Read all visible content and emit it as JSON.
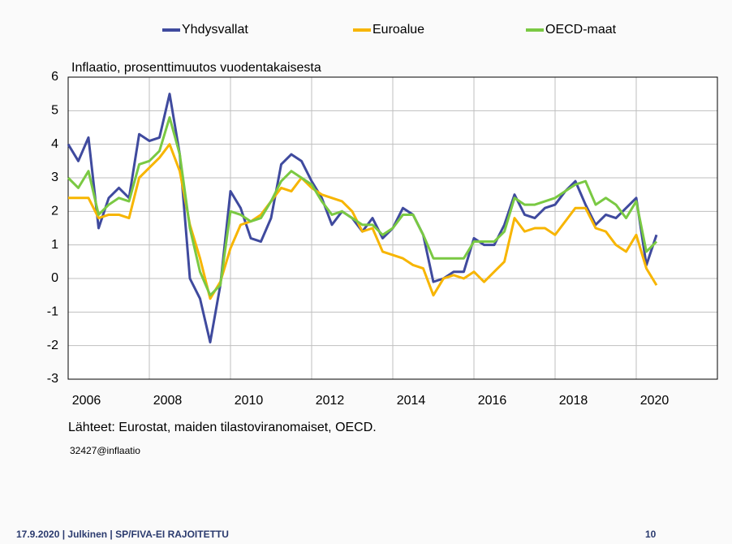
{
  "chart_data": {
    "type": "line",
    "subtitle": "Inflaatio, prosenttimuutos vuodentakaisesta",
    "source": "Lähteet: Eurostat, maiden tilastoviranomaiset, OECD.",
    "note": "32427@inflaatio",
    "x": [
      2006,
      2006.25,
      2006.5,
      2006.75,
      2007,
      2007.25,
      2007.5,
      2007.75,
      2008,
      2008.25,
      2008.5,
      2008.75,
      2009,
      2009.25,
      2009.5,
      2009.75,
      2010,
      2010.25,
      2010.5,
      2010.75,
      2011,
      2011.25,
      2011.5,
      2011.75,
      2012,
      2012.25,
      2012.5,
      2012.75,
      2013,
      2013.25,
      2013.5,
      2013.75,
      2014,
      2014.25,
      2014.5,
      2014.75,
      2015,
      2015.25,
      2015.5,
      2015.75,
      2016,
      2016.25,
      2016.5,
      2016.75,
      2017,
      2017.25,
      2017.5,
      2017.75,
      2018,
      2018.25,
      2018.5,
      2018.75,
      2019,
      2019.25,
      2019.5,
      2019.75,
      2020,
      2020.25,
      2020.5
    ],
    "series": [
      {
        "name": "Yhdysvallat",
        "color": "#3f4a9e",
        "values": [
          4.0,
          3.5,
          4.2,
          1.5,
          2.4,
          2.7,
          2.4,
          4.3,
          4.1,
          4.2,
          5.5,
          3.7,
          0.0,
          -0.6,
          -1.9,
          -0.2,
          2.6,
          2.1,
          1.2,
          1.1,
          1.8,
          3.4,
          3.7,
          3.5,
          2.9,
          2.4,
          1.6,
          2.0,
          1.8,
          1.4,
          1.8,
          1.2,
          1.5,
          2.1,
          1.9,
          1.3,
          -0.1,
          0.0,
          0.2,
          0.2,
          1.2,
          1.0,
          1.0,
          1.6,
          2.5,
          1.9,
          1.8,
          2.1,
          2.2,
          2.6,
          2.9,
          2.2,
          1.6,
          1.9,
          1.8,
          2.1,
          2.4,
          0.4,
          1.3
        ]
      },
      {
        "name": "Euroalue",
        "color": "#f7b500",
        "values": [
          2.4,
          2.4,
          2.4,
          1.8,
          1.9,
          1.9,
          1.8,
          3.0,
          3.3,
          3.6,
          4.0,
          3.2,
          1.6,
          0.6,
          -0.6,
          -0.1,
          0.9,
          1.6,
          1.7,
          1.9,
          2.3,
          2.7,
          2.6,
          3.0,
          2.7,
          2.5,
          2.4,
          2.3,
          2.0,
          1.4,
          1.5,
          0.8,
          0.7,
          0.6,
          0.4,
          0.3,
          -0.5,
          0.0,
          0.1,
          0.0,
          0.2,
          -0.1,
          0.2,
          0.5,
          1.8,
          1.4,
          1.5,
          1.5,
          1.3,
          1.7,
          2.1,
          2.1,
          1.5,
          1.4,
          1.0,
          0.8,
          1.3,
          0.3,
          -0.2
        ]
      },
      {
        "name": "OECD-maat",
        "color": "#7ac943",
        "values": [
          3.0,
          2.7,
          3.2,
          1.9,
          2.2,
          2.4,
          2.3,
          3.4,
          3.5,
          3.8,
          4.8,
          3.7,
          1.5,
          0.2,
          -0.5,
          -0.2,
          2.0,
          1.9,
          1.7,
          1.8,
          2.3,
          2.9,
          3.2,
          3.0,
          2.8,
          2.3,
          1.9,
          2.0,
          1.8,
          1.6,
          1.6,
          1.3,
          1.5,
          1.9,
          1.9,
          1.3,
          0.6,
          0.6,
          0.6,
          0.6,
          1.1,
          1.1,
          1.1,
          1.4,
          2.4,
          2.2,
          2.2,
          2.3,
          2.4,
          2.6,
          2.8,
          2.9,
          2.2,
          2.4,
          2.2,
          1.8,
          2.3,
          0.8,
          1.1
        ]
      }
    ],
    "xlim": [
      2006,
      2022
    ],
    "xticks": [
      2006,
      2008,
      2010,
      2012,
      2014,
      2016,
      2018,
      2020
    ],
    "ylim": [
      -3,
      6
    ],
    "yticks": [
      -3,
      -2,
      -1,
      0,
      1,
      2,
      3,
      4,
      5,
      6
    ],
    "grid": true,
    "legend": "top"
  },
  "footer": {
    "text": "17.9.2020 | Julkinen | SP/FIVA-EI RAJOITETTU",
    "page": "10"
  }
}
